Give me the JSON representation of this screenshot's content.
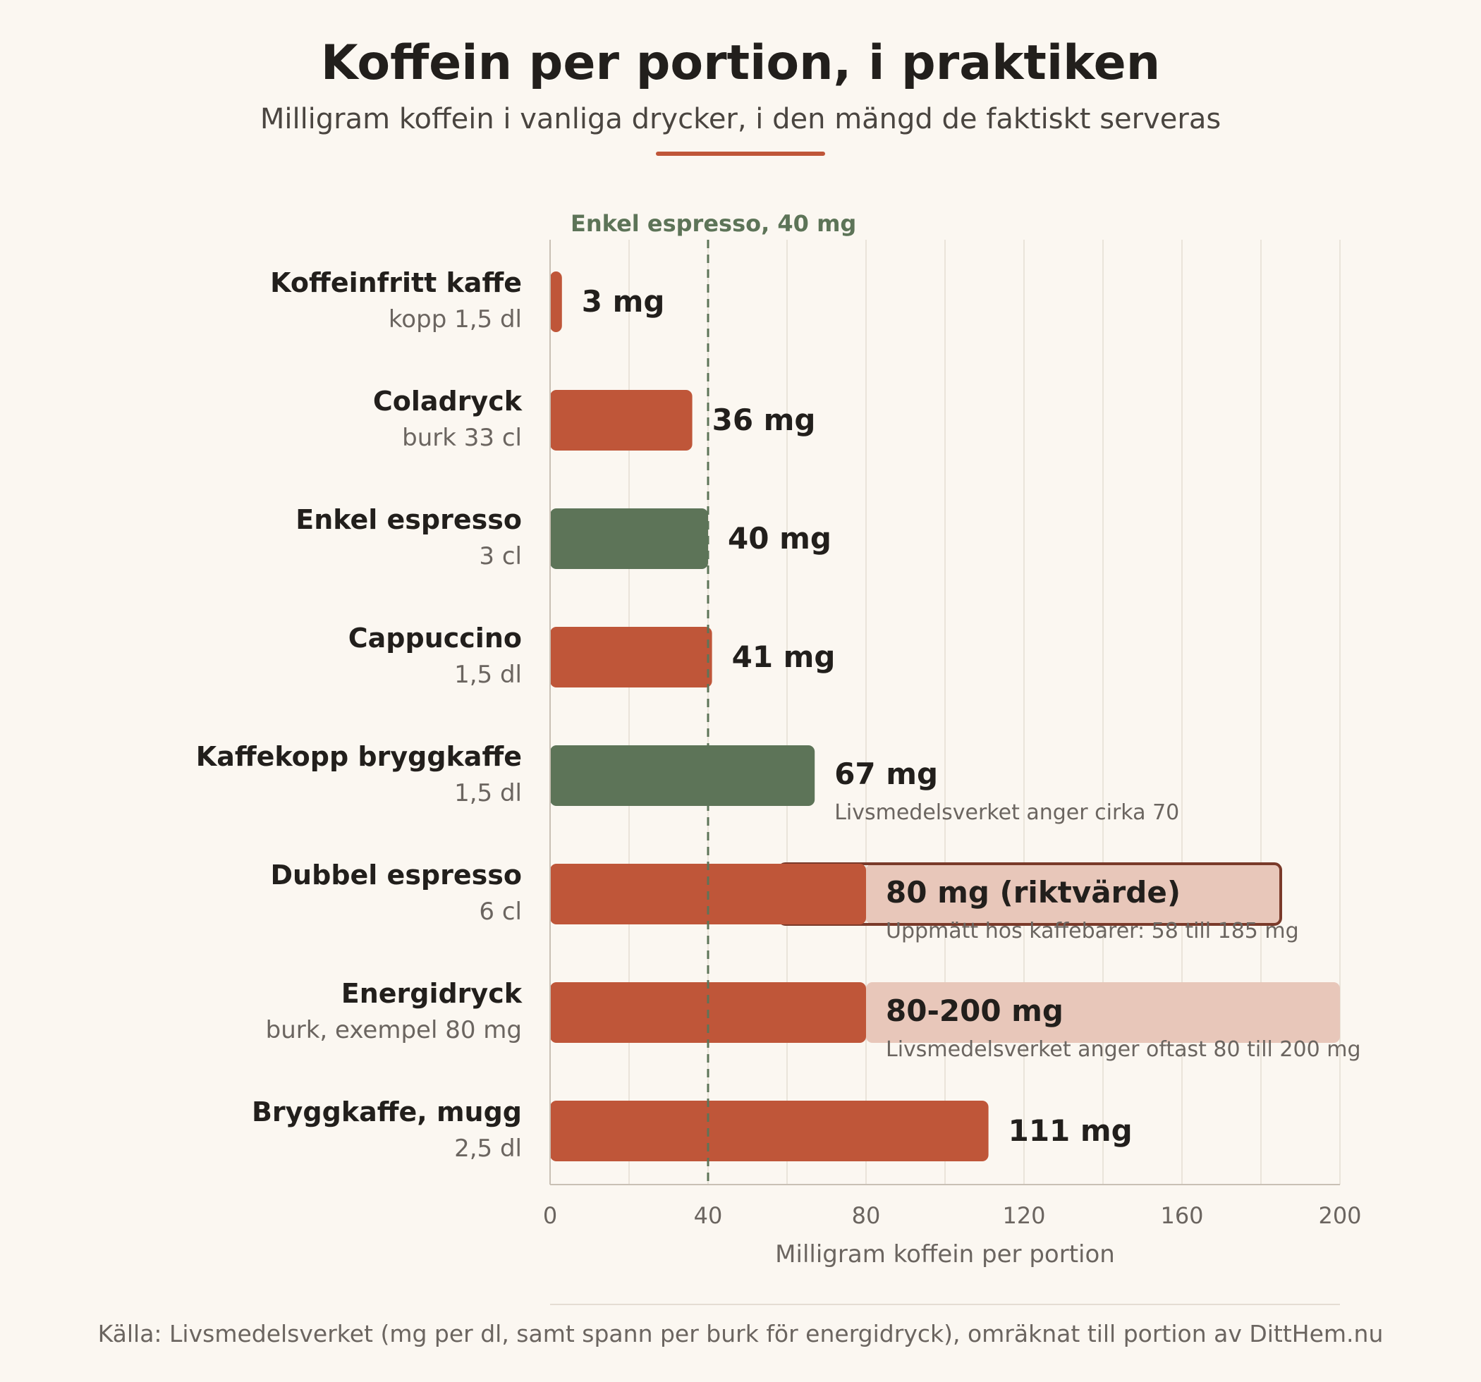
{
  "title": "Koffein per portion, i praktiken",
  "subtitle": "Milligram koffein i vanliga drycker, i den mängd de faktiskt serveras",
  "source": "Källa: Livsmedelsverket (mg per dl, samt spann per burk för energidryck), omräknat till portion av DittHem.nu",
  "colors": {
    "accent": "#bf5639",
    "highlight": "#5d7458",
    "range": "#e8c7ba",
    "range_border": "#7a3a2a",
    "title": "#221f1c",
    "muted": "#6b6560",
    "grid": "#e4ddd3",
    "background": "#fbf7f1"
  },
  "chart_data": {
    "type": "bar",
    "orientation": "horizontal",
    "xlabel": "Milligram koffein per portion",
    "xlim": [
      0,
      200
    ],
    "xticks": [
      0,
      40,
      80,
      120,
      160,
      200
    ],
    "grid": "vertical, every 20",
    "reference_line": {
      "value": 40,
      "label": "Enkel espresso, 40 mg"
    },
    "categories": [
      {
        "name": "Koffeinfritt kaffe",
        "portion": "kopp 1,5 dl",
        "value": 3,
        "label": "3 mg",
        "color": "accent"
      },
      {
        "name": "Coladryck",
        "portion": "burk 33 cl",
        "value": 36,
        "label": "36 mg",
        "color": "accent"
      },
      {
        "name": "Enkel espresso",
        "portion": "3 cl",
        "value": 40,
        "label": "40 mg",
        "color": "highlight"
      },
      {
        "name": "Cappuccino",
        "portion": "1,5 dl",
        "value": 41,
        "label": "41 mg",
        "color": "accent"
      },
      {
        "name": "Kaffekopp bryggkaffe",
        "portion": "1,5 dl",
        "value": 67,
        "label": "67 mg",
        "note": "Livsmedelsverket anger cirka 70",
        "color": "highlight"
      },
      {
        "name": "Dubbel espresso",
        "portion": "6 cl",
        "value": 80,
        "label": "80 mg (riktvärde)",
        "note": "Uppmätt hos kaffebarer: 58 till 185 mg",
        "range": [
          58,
          185
        ],
        "range_outlined": true,
        "color": "accent"
      },
      {
        "name": "Energidryck",
        "portion": "burk, exempel 80 mg",
        "value": 80,
        "label": "80-200 mg",
        "note": "Livsmedelsverket anger oftast 80 till 200 mg",
        "range": [
          80,
          200
        ],
        "range_outlined": false,
        "color": "accent"
      },
      {
        "name": "Bryggkaffe, mugg",
        "portion": "2,5 dl",
        "value": 111,
        "label": "111 mg",
        "color": "accent"
      }
    ]
  }
}
